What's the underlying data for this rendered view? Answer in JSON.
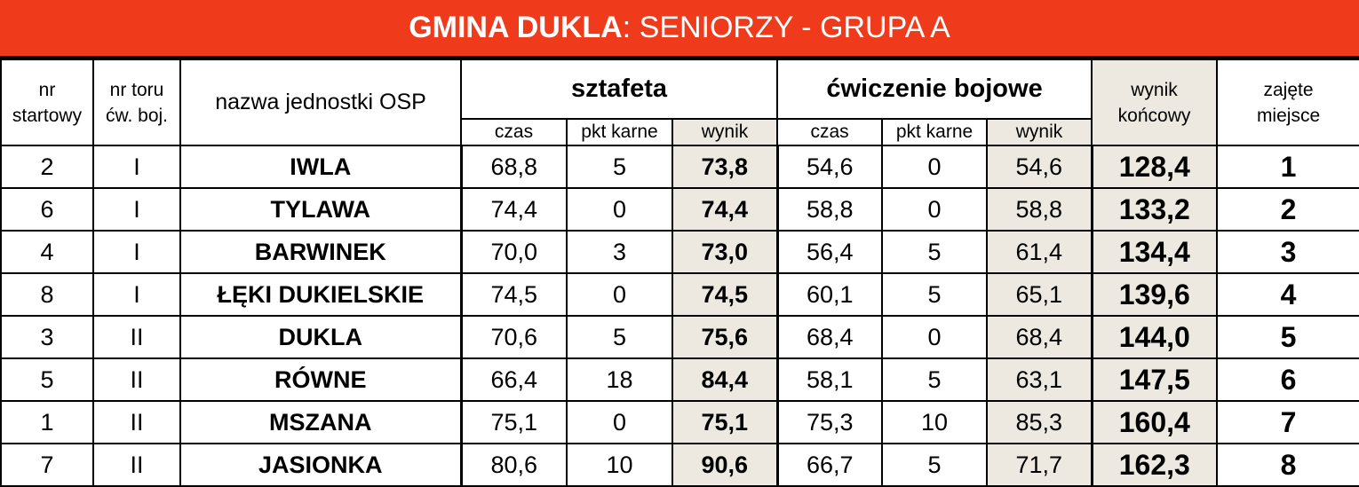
{
  "title": {
    "bold_part": "GMINA DUKLA",
    "rest": ": SENIORZY - GRUPA A"
  },
  "headers": {
    "nr_startowy": [
      "nr",
      "startowy"
    ],
    "nr_toru": [
      "nr toru",
      "ćw. boj."
    ],
    "nazwa": "nazwa jednostki OSP",
    "sztafeta": "sztafeta",
    "bojowe": "ćwiczenie bojowe",
    "wynik_koncowy": [
      "wynik",
      "końcowy"
    ],
    "miejsce": [
      "zajęte",
      "miejsce"
    ],
    "czas": "czas",
    "pkt_karne": "pkt karne",
    "wynik": "wynik"
  },
  "colors": {
    "title_bg": "#ef3b1b",
    "shade": "#ede9e1"
  },
  "rows": [
    {
      "nr": "2",
      "tor": "I",
      "name": "IWLA",
      "sz_czas": "68,8",
      "sz_pkt": "5",
      "sz_wynik": "73,8",
      "bw_czas": "54,6",
      "bw_pkt": "0",
      "bw_wynik": "54,6",
      "final": "128,4",
      "place": "1"
    },
    {
      "nr": "6",
      "tor": "I",
      "name": "TYLAWA",
      "sz_czas": "74,4",
      "sz_pkt": "0",
      "sz_wynik": "74,4",
      "bw_czas": "58,8",
      "bw_pkt": "0",
      "bw_wynik": "58,8",
      "final": "133,2",
      "place": "2"
    },
    {
      "nr": "4",
      "tor": "I",
      "name": "BARWINEK",
      "sz_czas": "70,0",
      "sz_pkt": "3",
      "sz_wynik": "73,0",
      "bw_czas": "56,4",
      "bw_pkt": "5",
      "bw_wynik": "61,4",
      "final": "134,4",
      "place": "3"
    },
    {
      "nr": "8",
      "tor": "I",
      "name": "ŁĘKI DUKIELSKIE",
      "sz_czas": "74,5",
      "sz_pkt": "0",
      "sz_wynik": "74,5",
      "bw_czas": "60,1",
      "bw_pkt": "5",
      "bw_wynik": "65,1",
      "final": "139,6",
      "place": "4"
    },
    {
      "nr": "3",
      "tor": "II",
      "name": "DUKLA",
      "sz_czas": "70,6",
      "sz_pkt": "5",
      "sz_wynik": "75,6",
      "bw_czas": "68,4",
      "bw_pkt": "0",
      "bw_wynik": "68,4",
      "final": "144,0",
      "place": "5"
    },
    {
      "nr": "5",
      "tor": "II",
      "name": "RÓWNE",
      "sz_czas": "66,4",
      "sz_pkt": "18",
      "sz_wynik": "84,4",
      "bw_czas": "58,1",
      "bw_pkt": "5",
      "bw_wynik": "63,1",
      "final": "147,5",
      "place": "6"
    },
    {
      "nr": "1",
      "tor": "II",
      "name": "MSZANA",
      "sz_czas": "75,1",
      "sz_pkt": "0",
      "sz_wynik": "75,1",
      "bw_czas": "75,3",
      "bw_pkt": "10",
      "bw_wynik": "85,3",
      "final": "160,4",
      "place": "7"
    },
    {
      "nr": "7",
      "tor": "II",
      "name": "JASIONKA",
      "sz_czas": "80,6",
      "sz_pkt": "10",
      "sz_wynik": "90,6",
      "bw_czas": "66,7",
      "bw_pkt": "5",
      "bw_wynik": "71,7",
      "final": "162,3",
      "place": "8"
    }
  ]
}
